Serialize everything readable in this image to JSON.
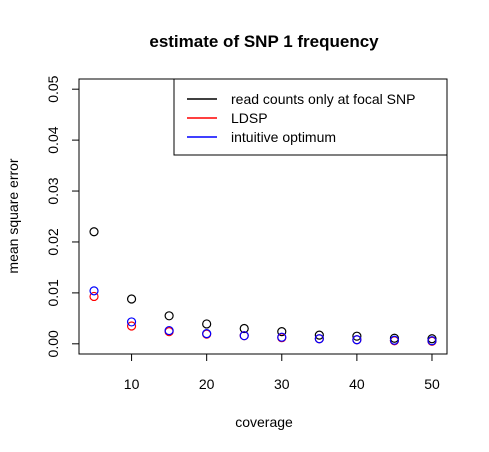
{
  "chart_data": {
    "type": "scatter",
    "title": "estimate of SNP 1 frequency",
    "xlabel": "coverage",
    "ylabel": "mean square error",
    "xlim": [
      3,
      52
    ],
    "ylim": [
      -0.002,
      0.052
    ],
    "x_ticks": [
      10,
      20,
      30,
      40,
      50
    ],
    "y_ticks": [
      0.0,
      0.01,
      0.02,
      0.03,
      0.04,
      0.05
    ],
    "y_tick_labels": [
      "0.00",
      "0.01",
      "0.02",
      "0.03",
      "0.04",
      "0.05"
    ],
    "grid": false,
    "legend_position": "top-right",
    "x": [
      5,
      10,
      15,
      20,
      25,
      30,
      35,
      40,
      45,
      50
    ],
    "series": [
      {
        "name": "read counts only at focal SNP",
        "color": "#000000",
        "values": [
          0.022,
          0.0088,
          0.0055,
          0.0039,
          0.003,
          0.0024,
          0.0017,
          0.0015,
          0.0011,
          0.001
        ]
      },
      {
        "name": "LDSP",
        "color": "#ff0000",
        "values": [
          0.0093,
          0.0035,
          0.0024,
          0.0019,
          0.0016,
          0.0012,
          0.001,
          0.0008,
          0.0006,
          0.0005
        ]
      },
      {
        "name": "intuitive optimum",
        "color": "#0000ff",
        "values": [
          0.0104,
          0.0043,
          0.0026,
          0.002,
          0.0016,
          0.0013,
          0.001,
          0.0008,
          0.0007,
          0.0006
        ]
      }
    ]
  }
}
